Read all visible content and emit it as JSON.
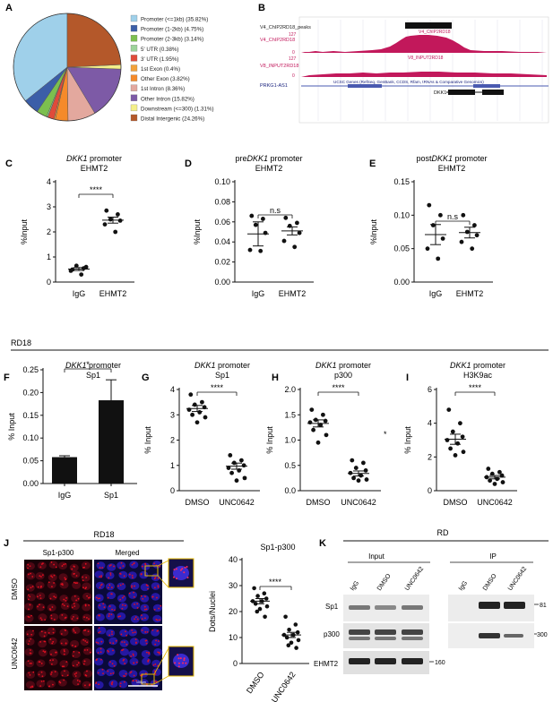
{
  "colors": {
    "promoter_le1kb": "#9fd0ea",
    "promoter_1_2kb": "#3b5ea8",
    "promoter_2_3kb": "#7cbf4f",
    "utr5": "#9dd39a",
    "utr3": "#e04b3a",
    "exon1": "#f3a23a",
    "other_exon": "#f58a2a",
    "intron1": "#e3a89e",
    "other_intron": "#7d5aa6",
    "downstream": "#f4ef8a",
    "distal_intergenic": "#b4582a",
    "chip_track": "#c2185b",
    "gene_track": "#4a5ab0",
    "dot_red": "#e01020",
    "nuclei_blue": "#2010b0",
    "accent_yellow": "#e6b800"
  },
  "panel_letters": {
    "a": "A",
    "b": "B",
    "c": "C",
    "d": "D",
    "e": "E",
    "f": "F",
    "g": "G",
    "h": "H",
    "i": "I",
    "j": "J",
    "k": "K"
  },
  "panelA": {
    "legend": [
      "Promoter (<=1kb) (35.82%)",
      "Promoter (1-2kb) (4.75%)",
      "Promoter (2-3kb) (3.14%)",
      "5' UTR (0.38%)",
      "3' UTR (1.95%)",
      "1st Exon (0.4%)",
      "Other Exon (3.82%)",
      "1st Intron (8.36%)",
      "Other Intron (15.82%)",
      "Downstream (<=300) (1.31%)",
      "Distal Intergenic (24.26%)"
    ]
  },
  "panelB": {
    "track1_label": "V4_ChIP2RD18_peaks",
    "track2_scale": "127",
    "track2_label": "V4_ChIP2RD18",
    "track2_peak_label": "V4_ChIP2RD18",
    "track2_zero": "0",
    "track3_scale": "127",
    "track3_label": "V8_INPUT2RD18",
    "track3_peak_label": "V8_INPUT2RD18",
    "track3_zero": "0",
    "genes_header": "UCSC Genes (RefSeq, GenBank, CCDS, Rfam, tRNAs & Comparative Genomics)",
    "gene1": "PRKG1-AS1",
    "gene2": "DKK1"
  },
  "panelC": {
    "title_italic": "DKK1",
    "title_rest": " promoter",
    "subtitle": "EHMT2",
    "ylabel": "%Input",
    "sig": "****",
    "yticks": [
      "0",
      "1",
      "2",
      "3",
      "4"
    ],
    "xticks": [
      "IgG",
      "EHMT2"
    ]
  },
  "panelD": {
    "title_pre": "pre",
    "title_italic": "DKK1",
    "title_rest": " promoter",
    "subtitle": "EHMT2",
    "ylabel": "%Input",
    "sig": "n.s",
    "yticks": [
      "0.00",
      "0.02",
      "0.04",
      "0.06",
      "0.08",
      "0.10"
    ],
    "xticks": [
      "IgG",
      "EHMT2"
    ]
  },
  "panelE": {
    "title_pre": "post",
    "title_italic": "DKK1",
    "title_rest": " promoter",
    "subtitle": "EHMT2",
    "ylabel": "%Input",
    "sig": "n.s",
    "yticks": [
      "0.00",
      "0.05",
      "0.10",
      "0.15"
    ],
    "xticks": [
      "IgG",
      "EHMT2"
    ]
  },
  "section_label": "RD18",
  "panelF": {
    "title_italic": "DKK1",
    "title_rest": " promoter",
    "subtitle": "Sp1",
    "ylabel": "% Input",
    "sig": "*",
    "yticks": [
      "0.00",
      "0.05",
      "0.10",
      "0.15",
      "0.20",
      "0.25"
    ],
    "xticks": [
      "IgG",
      "Sp1"
    ]
  },
  "panelG": {
    "title_italic": "DKK1",
    "title_rest": " promoter",
    "subtitle": "Sp1",
    "ylabel": "% Input",
    "sig": "****",
    "yticks": [
      "0",
      "1",
      "2",
      "3",
      "4"
    ],
    "xticks": [
      "DMSO",
      "UNC0642"
    ]
  },
  "panelH": {
    "title_italic": "DKK1",
    "title_rest": " promoter",
    "subtitle": "p300",
    "ylabel": "% Input",
    "sig": "****",
    "star": "*",
    "yticks": [
      "0.0",
      "0.5",
      "1.0",
      "1.5",
      "2.0"
    ],
    "xticks": [
      "DMSO",
      "UNC0642"
    ]
  },
  "panelI": {
    "title_italic": "DKK1",
    "title_rest": " promoter",
    "subtitle": "H3K9ac",
    "ylabel": "% Input",
    "sig": "****",
    "yticks": [
      "0",
      "2",
      "4",
      "6"
    ],
    "xticks": [
      "DMSO",
      "UNC0642"
    ]
  },
  "panelJ": {
    "title": "RD18",
    "col1": "Sp1-p300",
    "col2": "Merged",
    "row1": "DMSO",
    "row2": "UNC0642",
    "scale_bar": "100μm"
  },
  "panelJchart": {
    "title": "Sp1-p300",
    "ylabel": "Dots/Nuclei",
    "sig": "****",
    "yticks": [
      "0",
      "10",
      "20",
      "30",
      "40"
    ],
    "xticks": [
      "DMSO",
      "UNC0642"
    ]
  },
  "panelK": {
    "title": "RD",
    "input_label": "Input",
    "ip_label": "IP",
    "lanes_input": [
      "IgG",
      "DMSO",
      "UNC0642"
    ],
    "lanes_ip": [
      "IgG",
      "DMSO",
      "UNC0642"
    ],
    "row_labels": [
      "Sp1",
      "p300",
      "EHMT2"
    ],
    "mw": [
      "81",
      "300",
      "160"
    ]
  },
  "chart_data": [
    {
      "type": "pie",
      "panel": "A",
      "categories": [
        "Promoter (<=1kb)",
        "Promoter (1-2kb)",
        "Promoter (2-3kb)",
        "5' UTR",
        "3' UTR",
        "1st Exon",
        "Other Exon",
        "1st Intron",
        "Other Intron",
        "Downstream (<=300)",
        "Distal Intergenic"
      ],
      "values": [
        35.82,
        4.75,
        3.14,
        0.38,
        1.95,
        0.4,
        3.82,
        8.36,
        15.82,
        1.31,
        24.26
      ]
    },
    {
      "type": "scatter",
      "panel": "C",
      "categories": [
        "IgG",
        "EHMT2"
      ],
      "series": [
        {
          "values": [
            0.5,
            0.55,
            0.65,
            0.6,
            0.45,
            0.3
          ]
        },
        {
          "values": [
            2.85,
            2.7,
            2.5,
            2.45,
            2.3,
            2.0
          ]
        }
      ],
      "means": [
        0.52,
        2.47
      ],
      "sem": [
        0.06,
        0.12
      ],
      "ylim": [
        0,
        4
      ]
    },
    {
      "type": "scatter",
      "panel": "D",
      "categories": [
        "IgG",
        "EHMT2"
      ],
      "series": [
        {
          "values": [
            0.066,
            0.063,
            0.057,
            0.049,
            0.032,
            0.031
          ]
        },
        {
          "values": [
            0.064,
            0.059,
            0.056,
            0.049,
            0.041,
            0.035
          ]
        }
      ],
      "means": [
        0.048,
        0.051
      ],
      "sem": [
        0.012,
        0.004
      ],
      "ylim": [
        0,
        0.1
      ]
    },
    {
      "type": "scatter",
      "panel": "E",
      "categories": [
        "IgG",
        "EHMT2"
      ],
      "series": [
        {
          "values": [
            0.115,
            0.1,
            0.085,
            0.065,
            0.05,
            0.035
          ]
        },
        {
          "values": [
            0.1,
            0.085,
            0.075,
            0.07,
            0.06,
            0.05
          ]
        }
      ],
      "means": [
        0.071,
        0.074
      ],
      "sem": [
        0.015,
        0.008
      ],
      "ylim": [
        0,
        0.15
      ]
    },
    {
      "type": "bar",
      "panel": "F",
      "categories": [
        "IgG",
        "Sp1"
      ],
      "values": [
        0.058,
        0.183
      ],
      "errors": [
        0.003,
        0.045
      ],
      "ylim": [
        0,
        0.25
      ]
    },
    {
      "type": "scatter",
      "panel": "G",
      "categories": [
        "DMSO",
        "UNC0642"
      ],
      "series": [
        {
          "values": [
            3.8,
            3.5,
            3.4,
            3.3,
            3.2,
            3.1,
            3.0,
            2.9,
            2.7
          ]
        },
        {
          "values": [
            1.4,
            1.2,
            1.1,
            1.0,
            0.9,
            0.8,
            0.7,
            0.5,
            0.4
          ]
        }
      ],
      "means": [
        3.25,
        0.97
      ],
      "sem": [
        0.12,
        0.12
      ],
      "ylim": [
        0,
        4
      ]
    },
    {
      "type": "scatter",
      "panel": "H",
      "categories": [
        "DMSO",
        "UNC0642"
      ],
      "series": [
        {
          "values": [
            1.6,
            1.5,
            1.4,
            1.38,
            1.35,
            1.3,
            1.2,
            1.1,
            0.95
          ]
        },
        {
          "values": [
            0.6,
            0.55,
            0.45,
            0.4,
            0.35,
            0.3,
            0.25,
            0.22,
            0.2
          ]
        }
      ],
      "means": [
        1.33,
        0.34
      ],
      "sem": [
        0.07,
        0.05
      ],
      "ylim": [
        0,
        2
      ]
    },
    {
      "type": "scatter",
      "panel": "I",
      "categories": [
        "DMSO",
        "UNC0642"
      ],
      "series": [
        {
          "values": [
            4.8,
            4.0,
            3.5,
            3.2,
            3.0,
            2.8,
            2.5,
            2.3,
            2.1
          ]
        },
        {
          "values": [
            1.3,
            1.1,
            1.0,
            0.9,
            0.8,
            0.7,
            0.6,
            0.5,
            0.4
          ]
        }
      ],
      "means": [
        3.05,
        0.8
      ],
      "sem": [
        0.3,
        0.1
      ],
      "ylim": [
        0,
        6
      ]
    },
    {
      "type": "scatter",
      "panel": "J",
      "categories": [
        "DMSO",
        "UNC0642"
      ],
      "series": [
        {
          "values": [
            29,
            27,
            26,
            25,
            24,
            24,
            23,
            22,
            21,
            20,
            18
          ]
        },
        {
          "values": [
            18,
            15,
            13,
            12,
            11,
            11,
            10,
            9,
            8,
            7,
            6
          ]
        }
      ],
      "means": [
        24,
        11
      ],
      "sem": [
        1.0,
        1.0
      ],
      "ylim": [
        0,
        40
      ]
    }
  ]
}
